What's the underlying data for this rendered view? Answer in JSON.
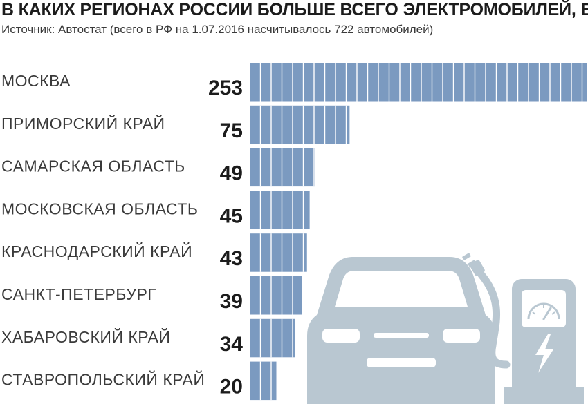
{
  "title": "В КАКИХ РЕГИОНАХ РОССИИ БОЛЬШЕ ВСЕГО ЭЛЕКТРОМОБИЛЕЙ, ЕД",
  "subtitle": "Источник: Автостат (всего в РФ на 1.07.2016 насчитывалось 722 автомобилей)",
  "colors": {
    "bar": "#7b9ac0",
    "bar_divider": "#ffffff",
    "illustration": "#b9c7d1"
  },
  "icons": [
    "car-icon",
    "charging-station-icon"
  ],
  "chart_data": {
    "type": "bar",
    "orientation": "horizontal",
    "categories": [
      "МОСКВА",
      "ПРИМОРСКИЙ КРАЙ",
      "САМАРСКАЯ ОБЛАСТЬ",
      "МОСКОВСКАЯ ОБЛАСТЬ",
      "КРАСНОДАРСКИЙ КРАЙ",
      "САНКТ-ПЕТЕРБУРГ",
      "ХАБАРОВСКИЙ КРАЙ",
      "СТАВРОПОЛЬСКИЙ КРАЙ"
    ],
    "values": [
      253,
      75,
      49,
      45,
      43,
      39,
      34,
      20
    ],
    "xlim": [
      0,
      253
    ],
    "grid": false,
    "legend": "none"
  }
}
